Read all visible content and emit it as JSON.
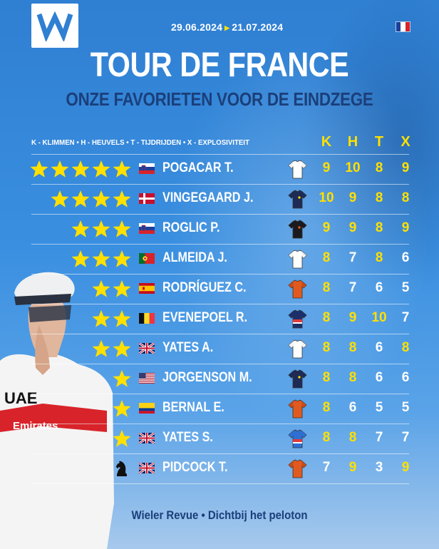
{
  "header": {
    "date_start": "29.06.2024",
    "date_end": "21.07.2024",
    "title": "TOUR DE FRANCE",
    "subtitle": "ONZE FAVORIETEN VOOR DE EINDZEGE"
  },
  "legend": "K - KLIMMEN • H - HEUVELS • T - TIJDRIJDEN • X - EXPLOSIVITEIT",
  "columns": [
    "K",
    "H",
    "T",
    "X"
  ],
  "colors": {
    "yellow": "#ffe000",
    "white": "#ffffff",
    "navy": "#1b3f7a"
  },
  "riders": [
    {
      "stars": 5,
      "flag": "SI",
      "name": "POGACAR T.",
      "jersey": "white-jersey-icon",
      "scores": [
        9,
        10,
        8,
        9
      ],
      "highlight": [
        true,
        true,
        true,
        true
      ]
    },
    {
      "stars": 4,
      "flag": "DK",
      "name": "VINGEGAARD J.",
      "jersey": "navy-jersey-icon",
      "scores": [
        10,
        9,
        8,
        8
      ],
      "highlight": [
        true,
        true,
        true,
        true
      ]
    },
    {
      "stars": 3,
      "flag": "SI",
      "name": "ROGLIC P.",
      "jersey": "black-jersey-icon",
      "scores": [
        9,
        9,
        8,
        9
      ],
      "highlight": [
        true,
        true,
        true,
        true
      ]
    },
    {
      "stars": 3,
      "flag": "PT",
      "name": "ALMEIDA J.",
      "jersey": "white-jersey-icon",
      "scores": [
        8,
        7,
        8,
        6
      ],
      "highlight": [
        true,
        false,
        true,
        false
      ]
    },
    {
      "stars": 2,
      "flag": "ES",
      "name": "RODRÍGUEZ C.",
      "jersey": "orange-jersey-icon",
      "scores": [
        8,
        7,
        6,
        5
      ],
      "highlight": [
        true,
        false,
        false,
        false
      ]
    },
    {
      "stars": 2,
      "flag": "BE",
      "name": "EVENEPOEL R.",
      "jersey": "navy-red-jersey-icon",
      "scores": [
        8,
        9,
        10,
        7
      ],
      "highlight": [
        true,
        true,
        true,
        false
      ]
    },
    {
      "stars": 2,
      "flag": "GB",
      "name": "YATES A.",
      "jersey": "white-jersey-icon",
      "scores": [
        8,
        8,
        6,
        8
      ],
      "highlight": [
        true,
        true,
        false,
        true
      ]
    },
    {
      "stars": 1,
      "flag": "US",
      "name": "JORGENSON M.",
      "jersey": "navy-jersey-icon",
      "scores": [
        8,
        8,
        6,
        6
      ],
      "highlight": [
        true,
        true,
        false,
        false
      ]
    },
    {
      "stars": 1,
      "flag": "CO",
      "name": "BERNAL E.",
      "jersey": "orange-jersey-icon",
      "scores": [
        8,
        6,
        5,
        5
      ],
      "highlight": [
        true,
        false,
        false,
        false
      ]
    },
    {
      "stars": 1,
      "flag": "GB",
      "name": "YATES S.",
      "jersey": "blue-red-jersey-icon",
      "scores": [
        8,
        8,
        7,
        7
      ],
      "highlight": [
        true,
        true,
        false,
        false
      ]
    },
    {
      "stars": 0,
      "chess_knight": true,
      "flag": "GB",
      "name": "PIDCOCK T.",
      "jersey": "orange-jersey-icon",
      "scores": [
        7,
        9,
        3,
        9
      ],
      "highlight": [
        false,
        true,
        false,
        true
      ]
    }
  ],
  "rider_jersey_text": [
    "UAE",
    "Emirates"
  ],
  "footer": "Wieler Revue • Dichtbij het peloton"
}
